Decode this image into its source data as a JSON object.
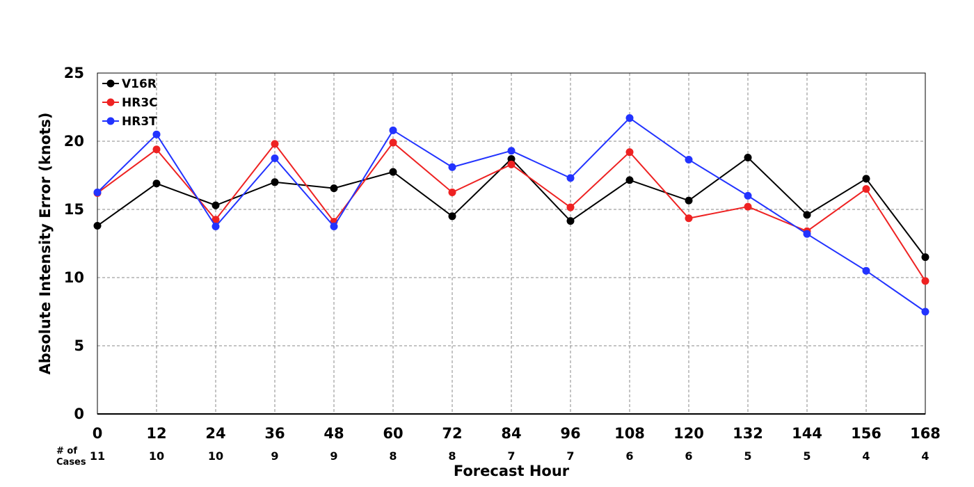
{
  "chart_data": {
    "type": "line",
    "title": "",
    "xlabel": "Forecast Hour",
    "ylabel": "Absolute Intensity Error (knots)",
    "x": [
      0,
      12,
      24,
      36,
      48,
      60,
      72,
      84,
      96,
      108,
      120,
      132,
      144,
      156,
      168
    ],
    "xlim": [
      0,
      168
    ],
    "ylim": [
      0,
      25
    ],
    "yticks": [
      0,
      5,
      10,
      15,
      20,
      25
    ],
    "grid": true,
    "legend_position": "top-left",
    "series": [
      {
        "name": "V16R",
        "color": "#000000",
        "values": [
          13.8,
          16.9,
          15.3,
          17.0,
          16.55,
          17.75,
          14.5,
          18.7,
          14.15,
          17.15,
          15.65,
          18.8,
          14.6,
          17.25,
          11.5
        ]
      },
      {
        "name": "HR3C",
        "color": "#ee2222",
        "values": [
          16.2,
          19.4,
          14.25,
          19.8,
          14.1,
          19.9,
          16.25,
          18.3,
          15.15,
          19.2,
          14.35,
          15.2,
          13.4,
          16.5,
          9.75
        ]
      },
      {
        "name": "HR3T",
        "color": "#2233ff",
        "values": [
          16.25,
          20.5,
          13.75,
          18.75,
          13.75,
          20.8,
          18.1,
          19.3,
          17.3,
          21.7,
          18.65,
          16.0,
          13.2,
          10.5,
          7.5
        ]
      }
    ],
    "cases": {
      "label_line1": "# of",
      "label_line2": "Cases",
      "values": [
        11,
        10,
        10,
        9,
        9,
        8,
        8,
        7,
        7,
        6,
        6,
        5,
        5,
        4,
        4
      ]
    }
  }
}
